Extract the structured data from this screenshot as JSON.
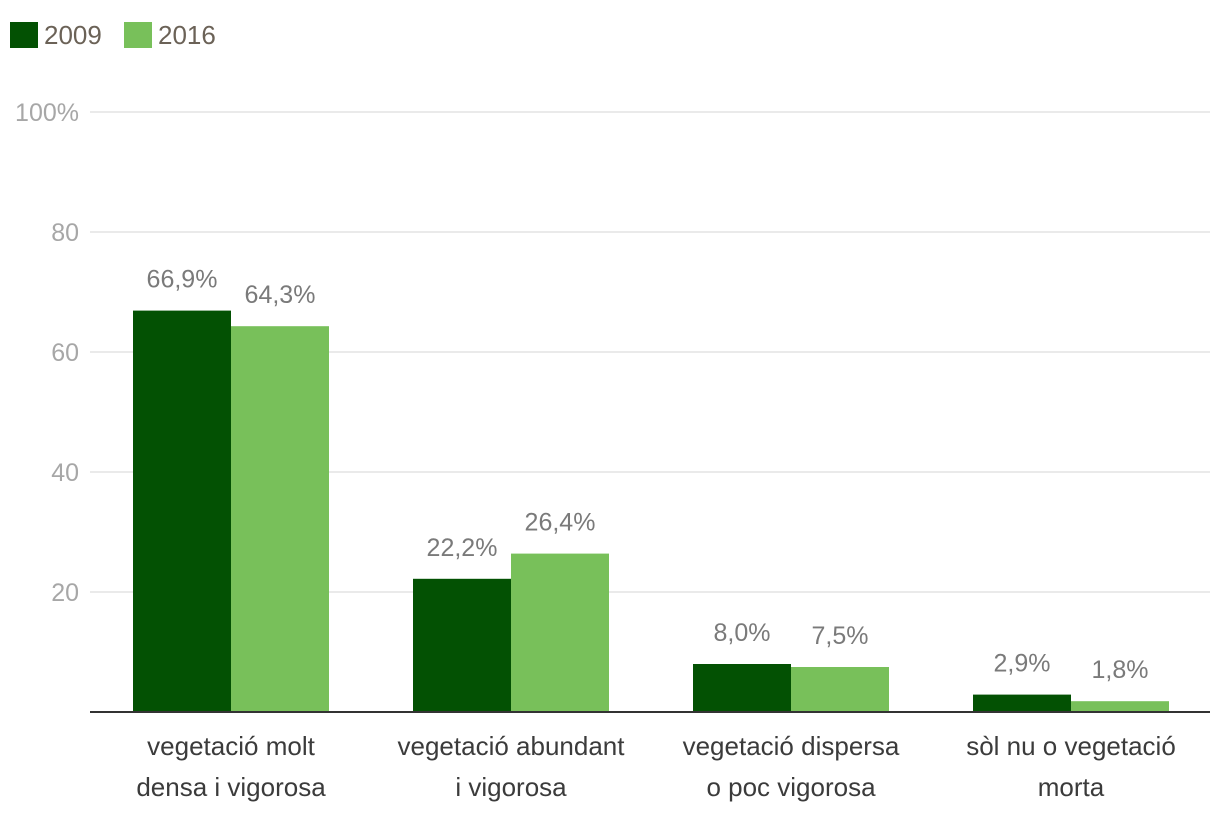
{
  "chart_data": {
    "type": "bar",
    "categories": [
      [
        "vegetació molt",
        "densa i vigorosa"
      ],
      [
        "vegetació abundant",
        "i vigorosa"
      ],
      [
        "vegetació dispersa",
        "o poc vigorosa"
      ],
      [
        "sòl nu o vegetació",
        "morta"
      ]
    ],
    "series": [
      {
        "name": "2009",
        "color": "#035103",
        "values": [
          66.9,
          22.2,
          8.0,
          2.9
        ],
        "labels": [
          "66,9%",
          "22,2%",
          "8,0%",
          "2,9%"
        ]
      },
      {
        "name": "2016",
        "color": "#78c05a",
        "values": [
          64.3,
          26.4,
          7.5,
          1.8
        ],
        "labels": [
          "64,3%",
          "26,4%",
          "7,5%",
          "1,8%"
        ]
      }
    ],
    "y_ticks": [
      {
        "value": 100,
        "label": "100%"
      },
      {
        "value": 80,
        "label": "80"
      },
      {
        "value": 60,
        "label": "60"
      },
      {
        "value": 40,
        "label": "40"
      },
      {
        "value": 20,
        "label": "20"
      }
    ],
    "ylim": [
      0,
      100
    ],
    "grid": true,
    "legend_position": "top-left",
    "title": "",
    "xlabel": "",
    "ylabel": ""
  }
}
